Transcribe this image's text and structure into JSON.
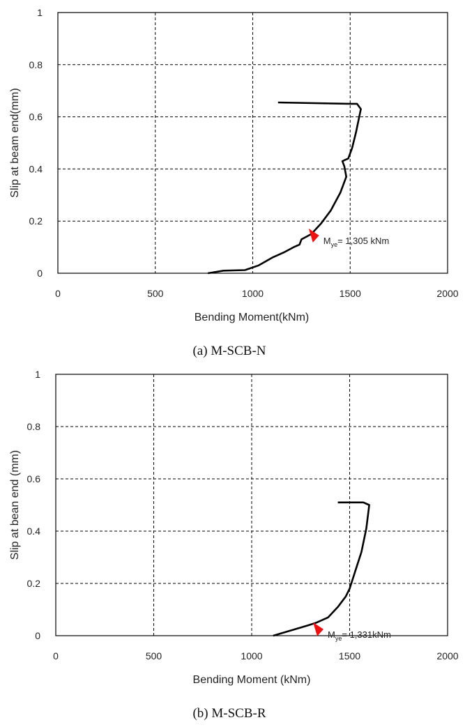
{
  "chart_data": [
    {
      "type": "line",
      "caption": "(a) M-SCB-N",
      "xlabel": "Bending Moment(kNm)",
      "ylabel": "Slip at beam end(mm)",
      "xlim": [
        0,
        2000
      ],
      "ylim": [
        0,
        1
      ],
      "xticks": [
        "0",
        "500",
        "1000",
        "1500",
        "2000"
      ],
      "yticks": [
        "0",
        "0.2",
        "0.4",
        "0.6",
        "0.8",
        "1"
      ],
      "grid": true,
      "series": [
        {
          "points": [
            [
              770,
              0
            ],
            [
              850,
              0.01
            ],
            [
              960,
              0.012
            ],
            [
              1030,
              0.03
            ],
            [
              1100,
              0.06
            ],
            [
              1160,
              0.08
            ],
            [
              1210,
              0.1
            ],
            [
              1240,
              0.11
            ],
            [
              1250,
              0.13
            ],
            [
              1300,
              0.15
            ],
            [
              1350,
              0.19
            ],
            [
              1400,
              0.24
            ],
            [
              1450,
              0.31
            ],
            [
              1480,
              0.37
            ],
            [
              1470,
              0.41
            ],
            [
              1460,
              0.43
            ],
            [
              1490,
              0.44
            ],
            [
              1510,
              0.48
            ],
            [
              1530,
              0.54
            ],
            [
              1555,
              0.63
            ],
            [
              1535,
              0.65
            ],
            [
              1500,
              0.65
            ],
            [
              1130,
              0.655
            ]
          ]
        }
      ],
      "annotation": {
        "marker_x": 1305,
        "marker_y": 0.15,
        "marker_color": "#ee1111",
        "label_main": "M",
        "label_sub": "ye",
        "label_value": "= 1,305 kNm"
      }
    },
    {
      "type": "line",
      "caption": "(b) M-SCB-R",
      "xlabel": "Bending Moment (kNm)",
      "ylabel": "Slip at bean end (mm)",
      "xlim": [
        0,
        2000
      ],
      "ylim": [
        0,
        1
      ],
      "xticks": [
        "0",
        "500",
        "1000",
        "1500",
        "2000"
      ],
      "yticks": [
        "0",
        "0.2",
        "0.4",
        "0.6",
        "0.8",
        "1"
      ],
      "grid": true,
      "series": [
        {
          "points": [
            [
              1110,
              0
            ],
            [
              1200,
              0.02
            ],
            [
              1290,
              0.04
            ],
            [
              1330,
              0.05
            ],
            [
              1390,
              0.07
            ],
            [
              1440,
              0.11
            ],
            [
              1480,
              0.15
            ],
            [
              1500,
              0.18
            ],
            [
              1530,
              0.25
            ],
            [
              1560,
              0.32
            ],
            [
              1585,
              0.41
            ],
            [
              1600,
              0.5
            ],
            [
              1570,
              0.51
            ],
            [
              1440,
              0.51
            ]
          ]
        }
      ],
      "annotation": {
        "marker_x": 1331,
        "marker_y": 0.03,
        "marker_color": "#ee1111",
        "label_main": "M",
        "label_sub": "ye",
        "label_value": "= 1,331kNm"
      }
    }
  ]
}
